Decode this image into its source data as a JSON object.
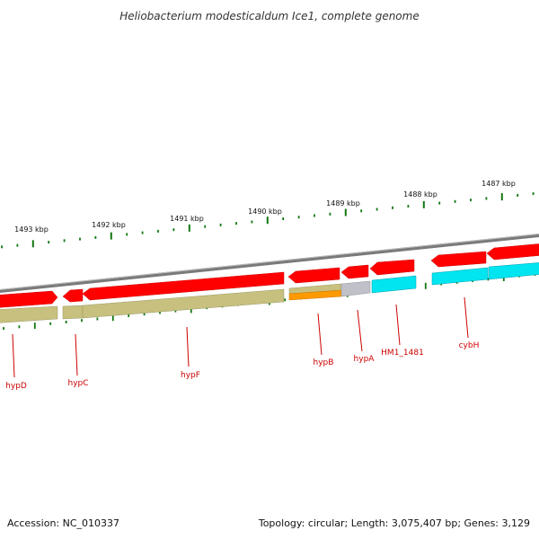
{
  "title": "Heliobacterium modesticaldum Ice1, complete genome",
  "footer": {
    "accession": "Accession: NC_010337",
    "topology": "Topology: circular; Length: 3,075,407 bp; Genes: 3,129"
  },
  "scale_labels": [
    "1493 kbp",
    "1492 kbp",
    "1491 kbp",
    "1490 kbp",
    "1489 kbp",
    "1488 kbp",
    "1487 kbp"
  ],
  "gene_labels": [
    "hypD",
    "hypC",
    "hypF",
    "hypB",
    "hypA",
    "HM1_1481",
    "cybH"
  ],
  "colors": {
    "forward_cds": "#ff0000",
    "reverse_track_olive": "#c8c07e",
    "reverse_track_orange": "#ff9900",
    "reverse_track_gray": "#c0c0c8",
    "reverse_track_cyan": "#00e5f0",
    "backbone": "#888888",
    "tick": "#117711",
    "label_line": "#cc0000"
  }
}
